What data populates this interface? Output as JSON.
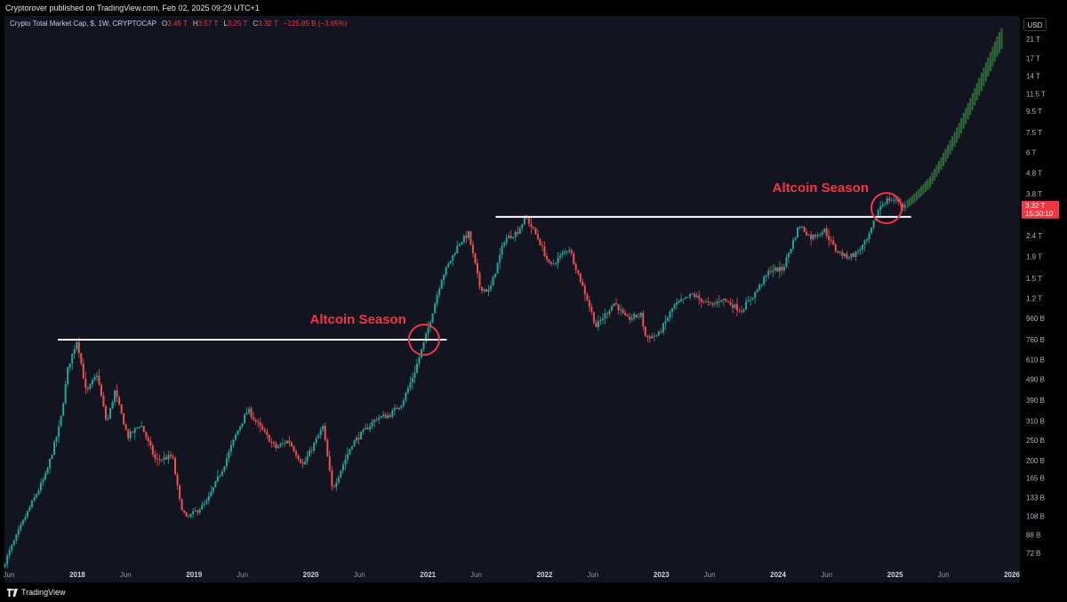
{
  "header": {
    "publisher": "Cryptorover published on TradingView.com, Feb 02, 2025 09:29 UTC+1"
  },
  "legend": {
    "symbol": "Crypto Total Market Cap, $, 1W, CRYPTOCAP",
    "open_label": "O",
    "open_value": "3.45 T",
    "high_label": "H",
    "high_value": "3.57 T",
    "low_label": "L",
    "low_value": "3.25 T",
    "close_label": "C",
    "close_value": "3.32 T",
    "change": "−125.85 B (−3.65%)"
  },
  "currency": "USD",
  "footer": {
    "brand": "TradingView"
  },
  "colors": {
    "up": "#26a69a",
    "down": "#ef5350",
    "projection": "#2f6b3a",
    "annotation": "#f23645",
    "level_line": "#ffffff",
    "background": "#12151f"
  },
  "chart_data": {
    "type": "candlestick",
    "title": "Crypto Total Market Cap",
    "interval": "1W",
    "y_scale": "log",
    "ylim": [
      63,
      24000
    ],
    "y_unit": "billion USD",
    "y_ticks": [
      {
        "label": "72 B",
        "value": 72
      },
      {
        "label": "88 B",
        "value": 88
      },
      {
        "label": "108 B",
        "value": 108
      },
      {
        "label": "133 B",
        "value": 133
      },
      {
        "label": "165 B",
        "value": 165
      },
      {
        "label": "200 B",
        "value": 200
      },
      {
        "label": "250 B",
        "value": 250
      },
      {
        "label": "310 B",
        "value": 310
      },
      {
        "label": "390 B",
        "value": 390
      },
      {
        "label": "490 B",
        "value": 490
      },
      {
        "label": "610 B",
        "value": 610
      },
      {
        "label": "760 B",
        "value": 760
      },
      {
        "label": "960 B",
        "value": 960
      },
      {
        "label": "1.2 T",
        "value": 1200
      },
      {
        "label": "1.5 T",
        "value": 1500
      },
      {
        "label": "1.9 T",
        "value": 1900
      },
      {
        "label": "2.4 T",
        "value": 2400
      },
      {
        "label": "3.8 T",
        "value": 3800
      },
      {
        "label": "4.8 T",
        "value": 4800
      },
      {
        "label": "6 T",
        "value": 6000
      },
      {
        "label": "7.5 T",
        "value": 7500
      },
      {
        "label": "9.5 T",
        "value": 9500
      },
      {
        "label": "11.5 T",
        "value": 11500
      },
      {
        "label": "14 T",
        "value": 14000
      },
      {
        "label": "17 T",
        "value": 17000
      },
      {
        "label": "21 T",
        "value": 21000
      }
    ],
    "x_ticks": [
      {
        "label": "Jun",
        "date": "2017-06-01",
        "bold": false
      },
      {
        "label": "2018",
        "date": "2018-01-01",
        "bold": true
      },
      {
        "label": "Jun",
        "date": "2018-06-01",
        "bold": false
      },
      {
        "label": "2019",
        "date": "2019-01-01",
        "bold": true
      },
      {
        "label": "Jun",
        "date": "2019-06-01",
        "bold": false
      },
      {
        "label": "2020",
        "date": "2020-01-01",
        "bold": true
      },
      {
        "label": "Jun",
        "date": "2020-06-01",
        "bold": false
      },
      {
        "label": "2021",
        "date": "2021-01-01",
        "bold": true
      },
      {
        "label": "Jun",
        "date": "2021-06-01",
        "bold": false
      },
      {
        "label": "2022",
        "date": "2022-01-01",
        "bold": true
      },
      {
        "label": "Jun",
        "date": "2022-06-01",
        "bold": false
      },
      {
        "label": "2023",
        "date": "2023-01-01",
        "bold": true
      },
      {
        "label": "Jun",
        "date": "2023-06-01",
        "bold": false
      },
      {
        "label": "2024",
        "date": "2024-01-01",
        "bold": true
      },
      {
        "label": "Jun",
        "date": "2024-06-01",
        "bold": false
      },
      {
        "label": "2025",
        "date": "2025-01-01",
        "bold": true
      },
      {
        "label": "Jun",
        "date": "2025-06-01",
        "bold": false
      },
      {
        "label": "2026",
        "date": "2026-01-01",
        "bold": true
      }
    ],
    "price_path": [
      [
        "2017-05-20",
        62
      ],
      [
        "2017-08-01",
        110
      ],
      [
        "2017-10-01",
        170
      ],
      [
        "2017-11-15",
        300
      ],
      [
        "2017-12-10",
        560
      ],
      [
        "2018-01-07",
        760
      ],
      [
        "2018-02-05",
        420
      ],
      [
        "2018-03-10",
        520
      ],
      [
        "2018-04-10",
        300
      ],
      [
        "2018-05-05",
        430
      ],
      [
        "2018-06-15",
        260
      ],
      [
        "2018-07-25",
        300
      ],
      [
        "2018-09-10",
        200
      ],
      [
        "2018-11-01",
        210
      ],
      [
        "2018-11-25",
        125
      ],
      [
        "2018-12-15",
        105
      ],
      [
        "2019-02-15",
        125
      ],
      [
        "2019-04-05",
        180
      ],
      [
        "2019-05-25",
        280
      ],
      [
        "2019-06-26",
        350
      ],
      [
        "2019-08-01",
        290
      ],
      [
        "2019-09-20",
        230
      ],
      [
        "2019-10-30",
        250
      ],
      [
        "2019-12-15",
        190
      ],
      [
        "2020-02-15",
        290
      ],
      [
        "2020-03-15",
        145
      ],
      [
        "2020-05-15",
        240
      ],
      [
        "2020-08-01",
        320
      ],
      [
        "2020-09-10",
        330
      ],
      [
        "2020-10-20",
        380
      ],
      [
        "2020-11-25",
        520
      ],
      [
        "2021-01-01",
        780
      ],
      [
        "2021-02-20",
        1500
      ],
      [
        "2021-04-15",
        2200
      ],
      [
        "2021-05-15",
        2450
      ],
      [
        "2021-06-20",
        1350
      ],
      [
        "2021-07-20",
        1300
      ],
      [
        "2021-09-05",
        2300
      ],
      [
        "2021-10-15",
        2500
      ],
      [
        "2021-11-10",
        2950
      ],
      [
        "2021-12-20",
        2300
      ],
      [
        "2022-01-25",
        1700
      ],
      [
        "2022-03-25",
        2100
      ],
      [
        "2022-05-20",
        1200
      ],
      [
        "2022-06-18",
        880
      ],
      [
        "2022-08-15",
        1150
      ],
      [
        "2022-09-20",
        950
      ],
      [
        "2022-11-05",
        1000
      ],
      [
        "2022-11-20",
        780
      ],
      [
        "2022-12-30",
        800
      ],
      [
        "2023-02-15",
        1100
      ],
      [
        "2023-04-15",
        1250
      ],
      [
        "2023-06-15",
        1100
      ],
      [
        "2023-07-15",
        1200
      ],
      [
        "2023-09-15",
        1050
      ],
      [
        "2023-11-01",
        1300
      ],
      [
        "2023-12-15",
        1650
      ],
      [
        "2024-01-22",
        1650
      ],
      [
        "2024-03-14",
        2700
      ],
      [
        "2024-04-20",
        2350
      ],
      [
        "2024-06-01",
        2550
      ],
      [
        "2024-07-05",
        2050
      ],
      [
        "2024-08-05",
        1900
      ],
      [
        "2024-09-05",
        1950
      ],
      [
        "2024-10-15",
        2300
      ],
      [
        "2024-11-20",
        3300
      ],
      [
        "2024-12-17",
        3600
      ],
      [
        "2025-01-20",
        3500
      ],
      [
        "2025-02-02",
        3320
      ]
    ],
    "projection_path": [
      [
        "2025-02-02",
        3320
      ],
      [
        "2025-03-10",
        3700
      ],
      [
        "2025-04-20",
        4300
      ],
      [
        "2025-06-01",
        5500
      ],
      [
        "2025-07-15",
        7300
      ],
      [
        "2025-09-01",
        10500
      ],
      [
        "2025-10-15",
        14800
      ],
      [
        "2025-11-15",
        19000
      ],
      [
        "2025-12-05",
        21500
      ]
    ],
    "last_price": {
      "label": "3.32 T",
      "value": 3320,
      "countdown": "15:30:10"
    },
    "annotations": [
      {
        "text": "Altcoin Season",
        "type": "circle",
        "date": "2020-12-20",
        "value": 760
      },
      {
        "text": "Altcoin Season",
        "type": "circle",
        "date": "2024-12-05",
        "value": 3250
      }
    ],
    "level_lines": [
      {
        "from": "2017-11-01",
        "to": "2021-03-01",
        "value": 760
      },
      {
        "from": "2021-08-01",
        "to": "2025-02-20",
        "value": 2950
      }
    ]
  }
}
